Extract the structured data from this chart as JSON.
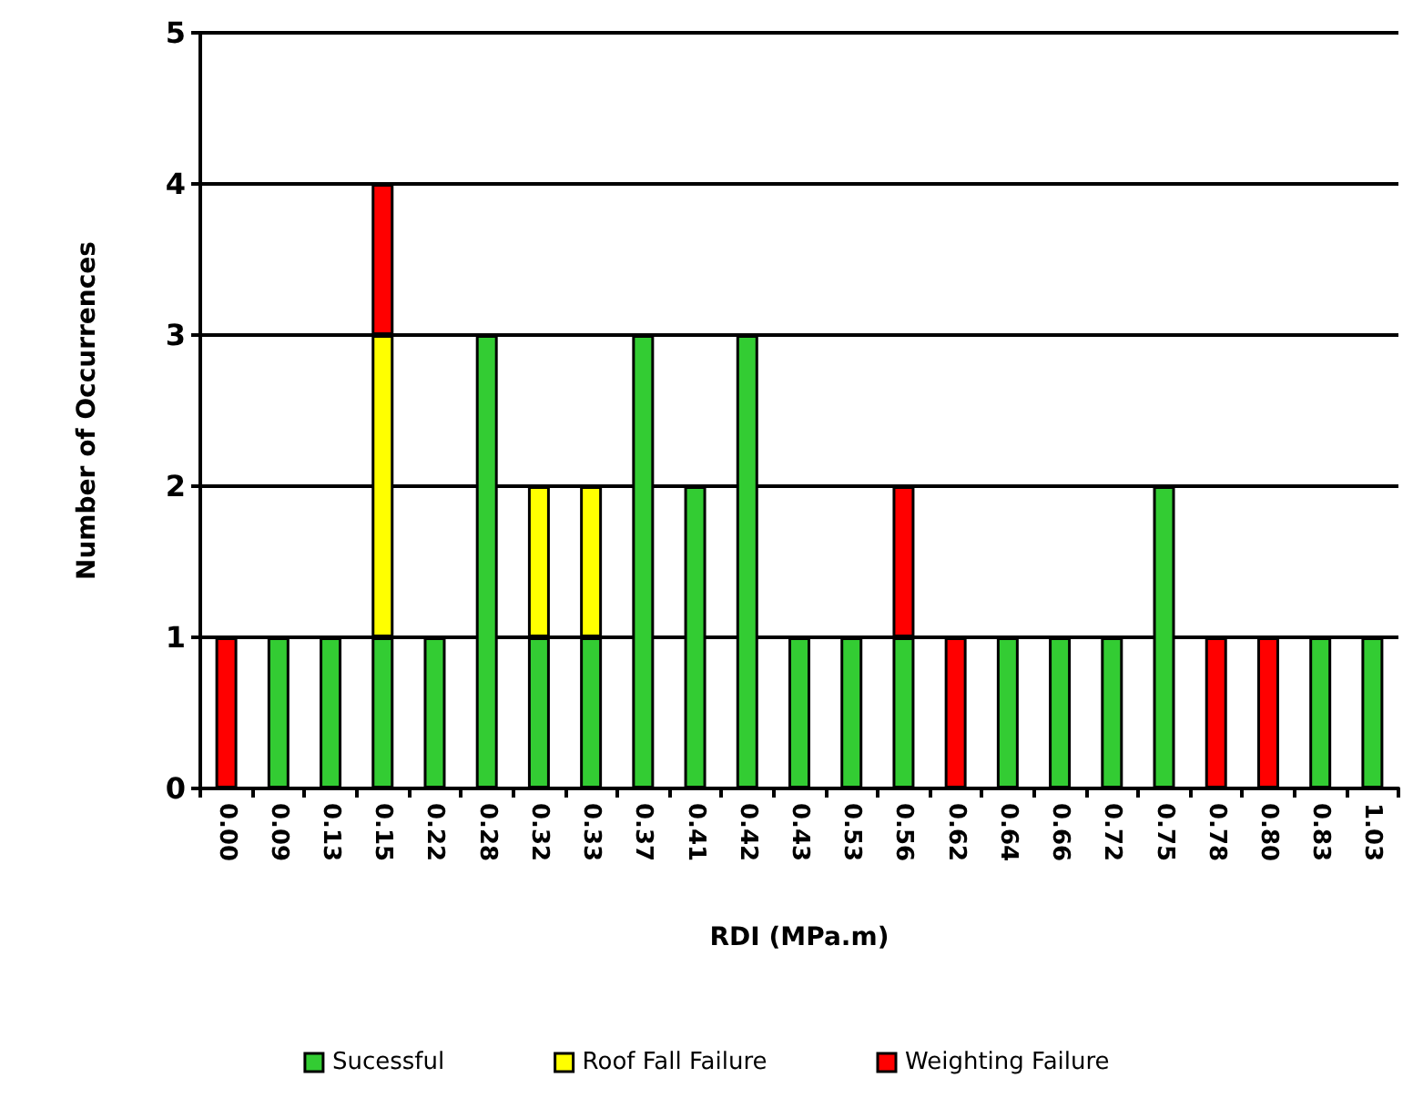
{
  "chart_data": {
    "type": "bar",
    "stacked": true,
    "xlabel": "RDI (MPa.m)",
    "ylabel": "Number of Occurrences",
    "categories": [
      "0.00",
      "0.09",
      "0.13",
      "0.15",
      "0.22",
      "0.28",
      "0.32",
      "0.33",
      "0.37",
      "0.41",
      "0.42",
      "0.43",
      "0.53",
      "0.56",
      "0.62",
      "0.64",
      "0.66",
      "0.72",
      "0.75",
      "0.78",
      "0.80",
      "0.83",
      "1.03"
    ],
    "series": [
      {
        "name": "Sucessful",
        "color": "#33cc33",
        "values": [
          0,
          1,
          1,
          1,
          1,
          3,
          1,
          1,
          3,
          2,
          3,
          1,
          1,
          1,
          0,
          1,
          1,
          1,
          2,
          0,
          0,
          1,
          1
        ]
      },
      {
        "name": "Roof Fall Failure",
        "color": "#ffff00",
        "values": [
          0,
          0,
          0,
          2,
          0,
          0,
          1,
          1,
          0,
          0,
          0,
          0,
          0,
          0,
          0,
          0,
          0,
          0,
          0,
          0,
          0,
          0,
          0
        ]
      },
      {
        "name": "Weighting Failure",
        "color": "#ff0000",
        "values": [
          1,
          0,
          0,
          1,
          0,
          0,
          0,
          0,
          0,
          0,
          0,
          0,
          0,
          1,
          1,
          0,
          0,
          0,
          0,
          1,
          1,
          0,
          0
        ]
      }
    ],
    "ylim": [
      0,
      5
    ],
    "yticks": [
      0,
      1,
      2,
      3,
      4,
      5
    ],
    "grid": "y",
    "legend": "bottom"
  }
}
